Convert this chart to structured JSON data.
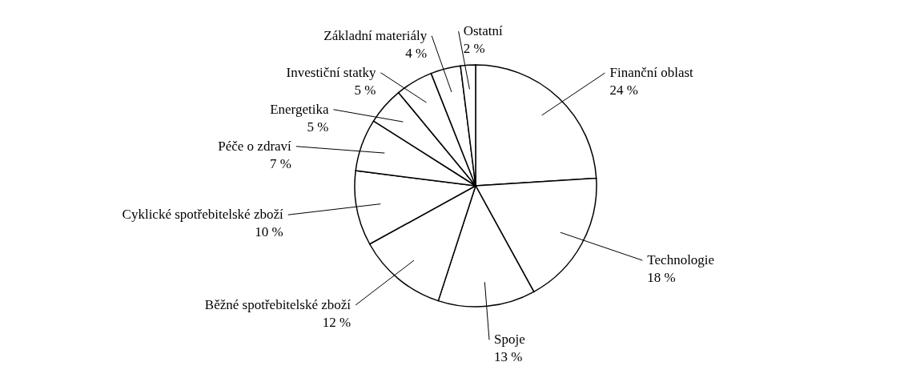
{
  "chart_data": {
    "type": "pie",
    "categories": [
      "Finanční oblast",
      "Technologie",
      "Spoje",
      "Běžné spotřebitelské zboží",
      "Cyklické spotřebitelské zboží",
      "Péče o zdraví",
      "Energetika",
      "Investiční statky",
      "Základní materiály",
      "Ostatní"
    ],
    "values": [
      24,
      18,
      13,
      12,
      10,
      7,
      5,
      5,
      4,
      2
    ],
    "value_labels": [
      "24 %",
      "18 %",
      "13 %",
      "12 %",
      "10 %",
      "7 %",
      "5 %",
      "5 %",
      "4 %",
      "2 %"
    ],
    "colors": [
      "#ffffff",
      "#ffffff",
      "#ffffff",
      "#ffffff",
      "#ffffff",
      "#ffffff",
      "#ffffff",
      "#ffffff",
      "#ffffff",
      "#ffffff"
    ]
  }
}
